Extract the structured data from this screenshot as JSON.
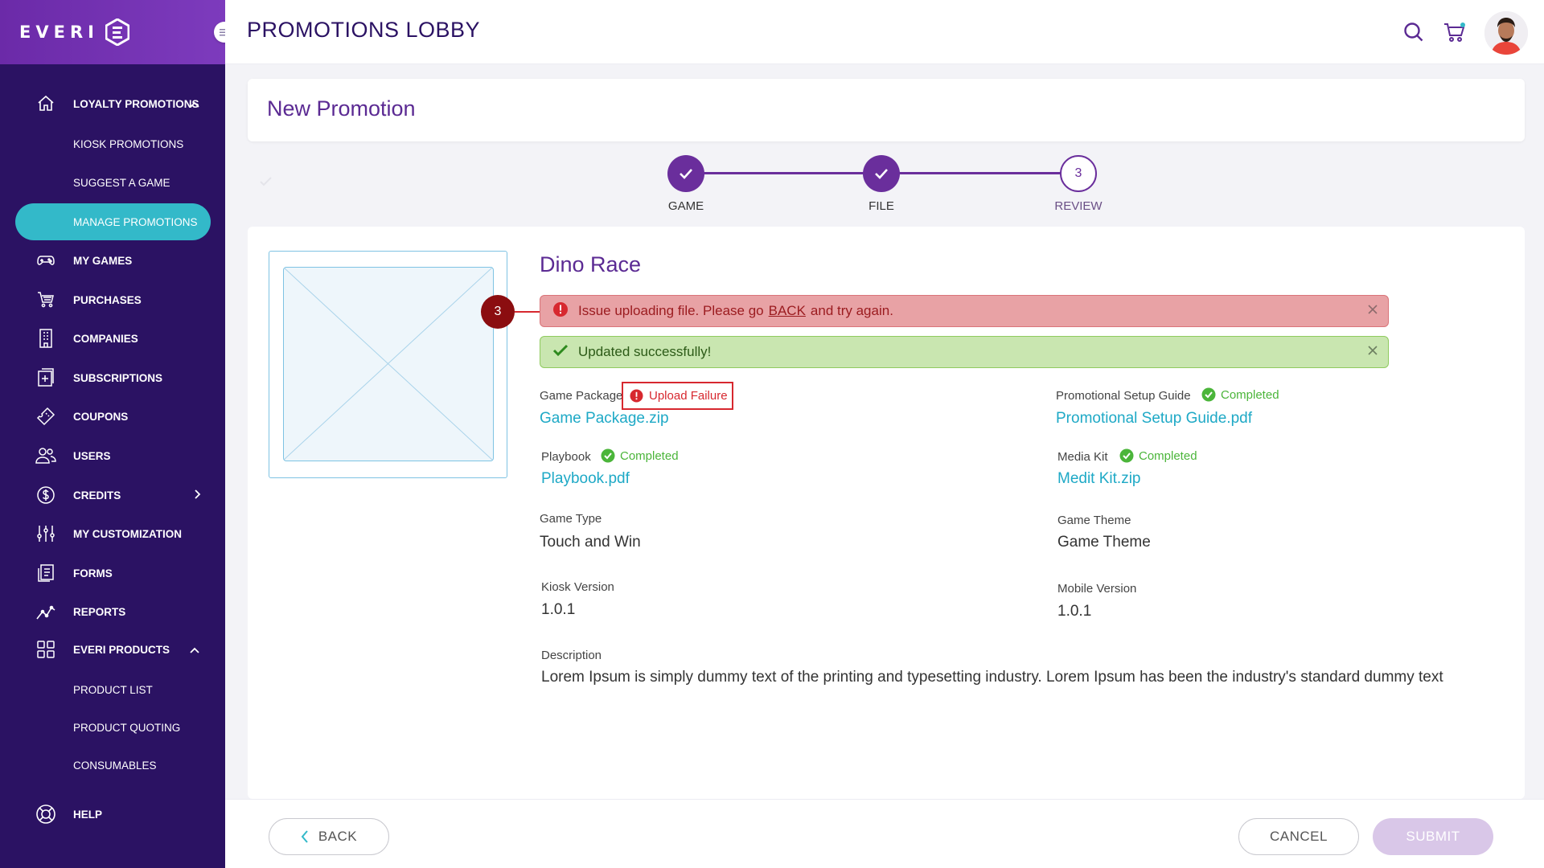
{
  "brand": {
    "logo_text": "EVERI"
  },
  "topbar": {
    "title": "PROMOTIONS LOBBY"
  },
  "sidebar": {
    "items": [
      {
        "label": "LOYALTY PROMOTIONS",
        "icon": "home-icon"
      },
      {
        "label": "KIOSK PROMOTIONS"
      },
      {
        "label": "SUGGEST A GAME"
      },
      {
        "label": "MANAGE PROMOTIONS",
        "active": true
      },
      {
        "label": "MY GAMES",
        "icon": "gamepad-icon"
      },
      {
        "label": "PURCHASES",
        "icon": "cart-icon"
      },
      {
        "label": "COMPANIES",
        "icon": "building-icon"
      },
      {
        "label": "SUBSCRIPTIONS",
        "icon": "subscription-icon"
      },
      {
        "label": "COUPONS",
        "icon": "ticket-icon"
      },
      {
        "label": "USERS",
        "icon": "users-icon"
      },
      {
        "label": "CREDITS",
        "icon": "dollar-icon"
      },
      {
        "label": "MY CUSTOMIZATION",
        "icon": "sliders-icon"
      },
      {
        "label": "FORMS",
        "icon": "form-icon"
      },
      {
        "label": "REPORTS",
        "icon": "chart-line-icon"
      },
      {
        "label": "EVERI PRODUCTS",
        "icon": "grid-icon"
      },
      {
        "label": "PRODUCT LIST"
      },
      {
        "label": "PRODUCT QUOTING"
      },
      {
        "label": "CONSUMABLES"
      },
      {
        "label": "HELP",
        "icon": "lifebuoy-icon"
      }
    ]
  },
  "header": {
    "title": "New Promotion"
  },
  "stepper": {
    "steps": [
      {
        "label": "GAME",
        "state": "done"
      },
      {
        "label": "FILE",
        "state": "done"
      },
      {
        "label": "REVIEW",
        "state": "current",
        "number": "3"
      }
    ]
  },
  "game": {
    "title": "Dino Race"
  },
  "annotation": {
    "number": "3"
  },
  "alerts": {
    "error": {
      "before": "Issue uploading file. Please go",
      "link": "BACK",
      "after": "and try again."
    },
    "success": {
      "text": "Updated successfully!"
    }
  },
  "fields": {
    "game_package": {
      "label": "Game Package",
      "status": "Upload Failure",
      "file": "Game Package.zip"
    },
    "setup_guide": {
      "label": "Promotional Setup Guide",
      "status": "Completed",
      "file": "Promotional Setup Guide.pdf"
    },
    "playbook": {
      "label": "Playbook",
      "status": "Completed",
      "file": "Playbook.pdf"
    },
    "media_kit": {
      "label": "Media Kit",
      "status": "Completed",
      "file": "Medit Kit.zip"
    },
    "game_type": {
      "label": "Game Type",
      "value": "Touch and Win"
    },
    "game_theme": {
      "label": "Game Theme",
      "value": "Game Theme"
    },
    "kiosk_version": {
      "label": "Kiosk Version",
      "value": "1.0.1"
    },
    "mobile_version": {
      "label": "Mobile Version",
      "value": "1.0.1"
    },
    "description": {
      "label": "Description",
      "value": "Lorem Ipsum is simply dummy text of the printing and typesetting industry. Lorem Ipsum has been the industry's standard dummy text"
    }
  },
  "footer": {
    "back": "BACK",
    "cancel": "CANCEL",
    "submit": "SUBMIT"
  },
  "colors": {
    "sidebar": "#2b1263",
    "accent": "#6a2e9c",
    "active": "#33b9c9",
    "link": "#1ea9c6",
    "error": "#d7282f",
    "success": "#4bb53a"
  }
}
